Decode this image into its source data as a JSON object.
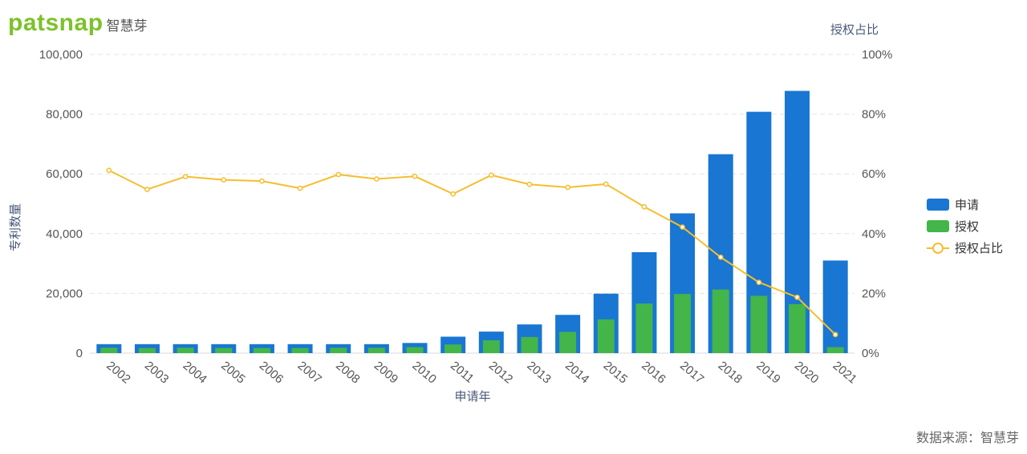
{
  "brand": {
    "logo_text": "patsnap",
    "logo_cn": "智慧芽"
  },
  "source_note": "数据来源：智慧芽",
  "colors": {
    "apply": "#1976d2",
    "grant": "#43b549",
    "ratio": "#f5be2e",
    "grid": "#e3e3e3",
    "axis_text": "#555555",
    "axis_title": "#4a5a7a"
  },
  "chart_data": {
    "type": "bar",
    "categories": [
      "2002",
      "2003",
      "2004",
      "2005",
      "2006",
      "2007",
      "2008",
      "2009",
      "2010",
      "2011",
      "2012",
      "2013",
      "2014",
      "2015",
      "2016",
      "2017",
      "2018",
      "2019",
      "2020",
      "2021"
    ],
    "series": [
      {
        "name": "申请",
        "type": "bar",
        "axis": "left",
        "values": [
          3000,
          3000,
          3000,
          3000,
          3000,
          3000,
          3000,
          3000,
          3400,
          5500,
          7200,
          9600,
          12800,
          19900,
          33800,
          46800,
          66600,
          80800,
          87800,
          31000
        ]
      },
      {
        "name": "授权",
        "type": "bar",
        "axis": "left",
        "values": [
          1800,
          1700,
          1800,
          1700,
          1700,
          1700,
          1800,
          1800,
          2000,
          2900,
          4300,
          5400,
          7100,
          11300,
          16600,
          19800,
          21300,
          19200,
          16400,
          2000
        ]
      },
      {
        "name": "授权占比",
        "type": "line",
        "axis": "right",
        "values": [
          61.2,
          54.8,
          59.1,
          58.0,
          57.6,
          55.2,
          59.8,
          58.3,
          59.2,
          53.3,
          59.6,
          56.5,
          55.5,
          56.6,
          49.0,
          42.2,
          32.1,
          23.7,
          18.7,
          6.2
        ]
      }
    ],
    "xlabel": "申请年",
    "ylabel": "专利数量",
    "y2label": "授权占比",
    "ylim": [
      0,
      100000
    ],
    "y2lim": [
      0,
      100
    ],
    "yticks": [
      "0",
      "20,000",
      "40,000",
      "60,000",
      "80,000",
      "100,000"
    ],
    "y2ticks": [
      "0%",
      "20%",
      "40%",
      "60%",
      "80%",
      "100%"
    ],
    "grid": true,
    "legend_position": "right"
  }
}
